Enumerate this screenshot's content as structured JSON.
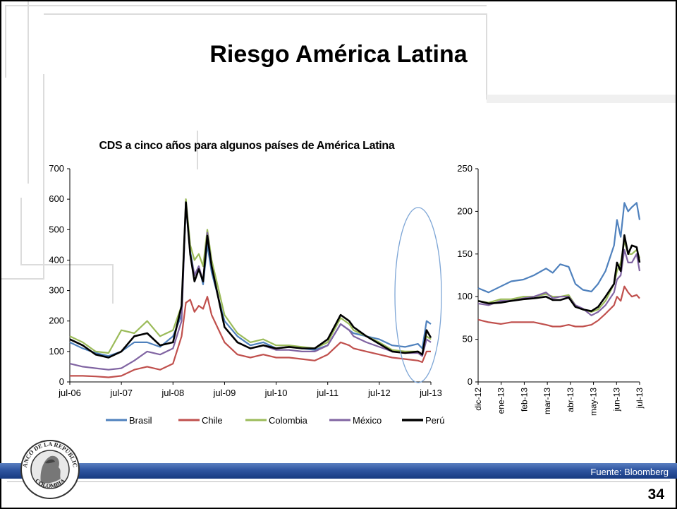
{
  "slide": {
    "title": "Riesgo América Latina",
    "source": "Fuente: Bloomberg",
    "page_number": "34",
    "seal_text": "BANCO DE LA REPUBLICA COLOMBIA"
  },
  "colors": {
    "Brasil": "#4f81bd",
    "Chile": "#c0504d",
    "Colombia": "#9bbb59",
    "Mexico": "#8064a2",
    "Peru": "#000000",
    "highlight_ellipse": "#7ea6d6",
    "footer_bar": "#2f55a0"
  },
  "chart_data": [
    {
      "type": "line",
      "title": "CDS a cinco años para algunos países de América Latina",
      "xlabel": "",
      "ylabel": "",
      "ylim": [
        0,
        700
      ],
      "yticks": [
        "0",
        "100",
        "200",
        "300",
        "400",
        "500",
        "600",
        "700"
      ],
      "x_range": [
        "2006-07",
        "2013-07"
      ],
      "x_ticks": [
        "jul-06",
        "jul-07",
        "jul-08",
        "jul-09",
        "jul-10",
        "jul-11",
        "jul-12",
        "jul-13"
      ],
      "x": [
        "2006-07",
        "2006-10",
        "2007-01",
        "2007-04",
        "2007-07",
        "2007-10",
        "2008-01",
        "2008-04",
        "2008-07",
        "2008-09",
        "2008-10",
        "2008-11",
        "2008-12",
        "2009-01",
        "2009-02",
        "2009-03",
        "2009-04",
        "2009-07",
        "2009-10",
        "2010-01",
        "2010-04",
        "2010-07",
        "2010-10",
        "2011-01",
        "2011-04",
        "2011-07",
        "2011-10",
        "2011-12",
        "2012-01",
        "2012-04",
        "2012-07",
        "2012-10",
        "2013-01",
        "2013-04",
        "2013-05",
        "2013-06",
        "2013-07"
      ],
      "legend": "bottom",
      "series": [
        {
          "name": "Brasil",
          "values": [
            130,
            110,
            95,
            85,
            100,
            130,
            130,
            115,
            150,
            220,
            580,
            430,
            350,
            380,
            320,
            450,
            360,
            200,
            150,
            120,
            130,
            110,
            115,
            110,
            105,
            120,
            190,
            170,
            160,
            150,
            140,
            120,
            115,
            125,
            110,
            200,
            190
          ]
        },
        {
          "name": "Chile",
          "values": [
            20,
            20,
            18,
            15,
            20,
            40,
            50,
            40,
            60,
            150,
            260,
            270,
            230,
            250,
            240,
            280,
            220,
            130,
            90,
            80,
            90,
            80,
            80,
            75,
            70,
            90,
            130,
            120,
            110,
            100,
            90,
            80,
            75,
            70,
            65,
            100,
            100
          ]
        },
        {
          "name": "Colombia",
          "values": [
            150,
            130,
            100,
            95,
            170,
            160,
            200,
            150,
            170,
            250,
            600,
            450,
            400,
            420,
            380,
            500,
            400,
            220,
            160,
            130,
            140,
            120,
            120,
            115,
            110,
            130,
            210,
            190,
            170,
            150,
            130,
            105,
            100,
            100,
            90,
            150,
            140
          ]
        },
        {
          "name": "México",
          "values": [
            60,
            50,
            45,
            40,
            45,
            70,
            100,
            90,
            110,
            200,
            590,
            420,
            350,
            380,
            330,
            490,
            380,
            180,
            130,
            110,
            120,
            105,
            105,
            100,
            100,
            120,
            190,
            170,
            150,
            130,
            115,
            100,
            95,
            95,
            85,
            140,
            130
          ]
        },
        {
          "name": "Perú",
          "values": [
            140,
            120,
            90,
            80,
            100,
            150,
            160,
            120,
            130,
            250,
            590,
            420,
            330,
            370,
            330,
            480,
            380,
            180,
            130,
            110,
            120,
            110,
            115,
            110,
            110,
            140,
            220,
            200,
            180,
            150,
            125,
            100,
            95,
            100,
            90,
            170,
            145
          ]
        }
      ]
    },
    {
      "type": "line",
      "title": "",
      "ylim": [
        0,
        250
      ],
      "yticks": [
        "0",
        "50",
        "100",
        "150",
        "200",
        "250"
      ],
      "x_range": [
        "2012-12-01",
        "2013-07-05"
      ],
      "x_ticks": [
        "dic-12",
        "ene-13",
        "feb-13",
        "mar-13",
        "abr-13",
        "may-13",
        "jun-13",
        "jul-13"
      ],
      "x": [
        "2012-12-01",
        "2012-12-15",
        "2013-01-01",
        "2013-01-15",
        "2013-02-01",
        "2013-02-15",
        "2013-03-01",
        "2013-03-10",
        "2013-03-20",
        "2013-04-01",
        "2013-04-10",
        "2013-04-20",
        "2013-05-01",
        "2013-05-10",
        "2013-05-20",
        "2013-06-01",
        "2013-06-05",
        "2013-06-10",
        "2013-06-15",
        "2013-06-20",
        "2013-06-25",
        "2013-07-01",
        "2013-07-05"
      ],
      "series": [
        {
          "name": "Brasil",
          "values": [
            110,
            105,
            112,
            118,
            120,
            125,
            133,
            128,
            138,
            135,
            115,
            108,
            106,
            115,
            130,
            160,
            190,
            170,
            210,
            200,
            205,
            210,
            190
          ]
        },
        {
          "name": "Chile",
          "values": [
            73,
            70,
            68,
            70,
            70,
            70,
            67,
            65,
            65,
            67,
            65,
            65,
            67,
            72,
            80,
            90,
            100,
            95,
            112,
            105,
            100,
            102,
            98
          ]
        },
        {
          "name": "Colombia",
          "values": [
            95,
            93,
            97,
            97,
            100,
            100,
            103,
            100,
            100,
            102,
            90,
            85,
            82,
            85,
            95,
            115,
            130,
            140,
            165,
            150,
            150,
            155,
            145
          ]
        },
        {
          "name": "México",
          "values": [
            92,
            90,
            95,
            95,
            98,
            100,
            105,
            98,
            100,
            100,
            90,
            86,
            78,
            82,
            90,
            105,
            120,
            125,
            155,
            140,
            140,
            150,
            130
          ]
        },
        {
          "name": "Perú",
          "values": [
            95,
            92,
            93,
            95,
            97,
            98,
            100,
            96,
            96,
            99,
            88,
            85,
            83,
            88,
            100,
            115,
            140,
            130,
            172,
            150,
            160,
            158,
            140
          ]
        }
      ]
    }
  ]
}
